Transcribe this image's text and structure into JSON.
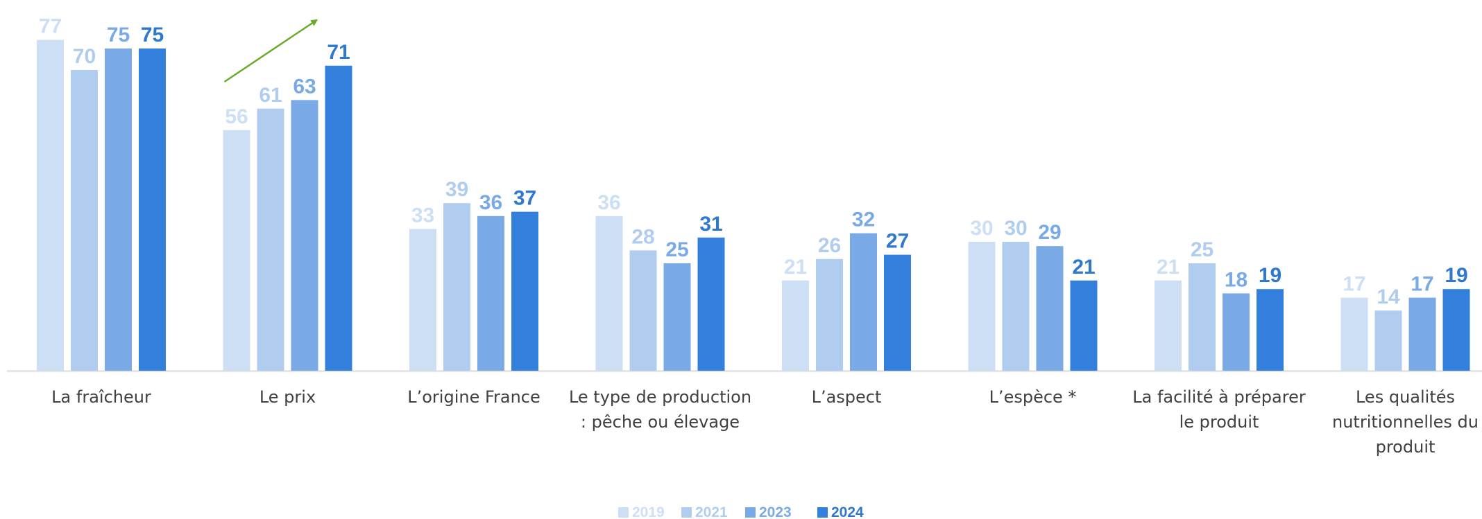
{
  "chart_data": {
    "type": "bar",
    "categories": [
      [
        "La fraîcheur"
      ],
      [
        "Le prix"
      ],
      [
        "L’origine France"
      ],
      [
        "Le type de production",
        ": pêche ou élevage"
      ],
      [
        "L’aspect"
      ],
      [
        "L’espèce *"
      ],
      [
        "La facilité à préparer",
        "le produit"
      ],
      [
        "Les qualités",
        "nutritionnelles du",
        "produit"
      ]
    ],
    "series": [
      {
        "name": "2019",
        "color": "#cddff5",
        "values": [
          77,
          56,
          33,
          36,
          21,
          30,
          21,
          17
        ]
      },
      {
        "name": "2021",
        "color": "#b0cdf0",
        "values": [
          70,
          61,
          39,
          28,
          26,
          30,
          25,
          14
        ]
      },
      {
        "name": "2023",
        "color": "#7aaae6",
        "values": [
          75,
          63,
          36,
          25,
          32,
          29,
          18,
          17
        ]
      },
      {
        "name": "2024",
        "color": "#3380dc",
        "values": [
          75,
          71,
          37,
          31,
          27,
          21,
          19,
          19
        ]
      }
    ],
    "label_colors": [
      "#cddff5",
      "#b0cdf0",
      "#7aaae6",
      "#2f78cf"
    ],
    "ylim": [
      0,
      80
    ],
    "grid": false,
    "legend_position": "bottom-center",
    "annotation": {
      "type": "arrow",
      "category": "Le prix",
      "color": "#6aaa2a"
    },
    "title": "",
    "xlabel": "",
    "ylabel": ""
  }
}
